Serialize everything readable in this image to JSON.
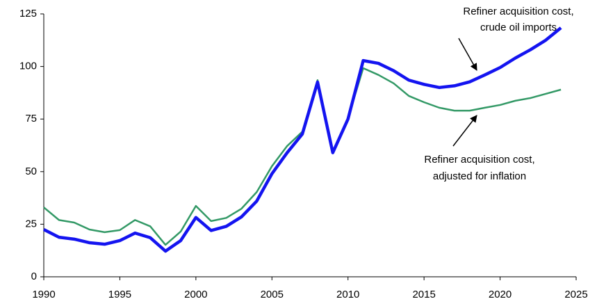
{
  "chart_data": {
    "type": "line",
    "x": [
      1990,
      1991,
      1992,
      1993,
      1994,
      1995,
      1996,
      1997,
      1998,
      1999,
      2000,
      2001,
      2002,
      2003,
      2004,
      2005,
      2006,
      2007,
      2008,
      2009,
      2010,
      2011,
      2012,
      2013,
      2014,
      2015,
      2016,
      2017,
      2018,
      2019,
      2020,
      2021,
      2022,
      2023,
      2024
    ],
    "series": [
      {
        "name": "Refiner acquisition cost, crude oil imports",
        "color": "#1414f0",
        "width": 4.5,
        "values": [
          22.5,
          18.8,
          17.9,
          16.2,
          15.5,
          17.2,
          20.8,
          18.6,
          12.2,
          17.2,
          28.2,
          22.0,
          24.0,
          28.5,
          36.0,
          49.0,
          59.0,
          67.9,
          92.6,
          59.0,
          75.0,
          102.8,
          101.5,
          98.0,
          93.5,
          91.5,
          90.0,
          90.8,
          92.7,
          96.0,
          99.5,
          104.0,
          108.0,
          112.5,
          118.4
        ]
      },
      {
        "name": "Refiner acquisition cost, adjusted for inflation",
        "color": "#339966",
        "width": 2.5,
        "values": [
          33.0,
          27.0,
          25.8,
          22.5,
          21.2,
          22.2,
          27.0,
          24.0,
          15.2,
          21.5,
          33.7,
          26.5,
          28.0,
          32.4,
          40.3,
          52.6,
          62.2,
          69.0,
          93.5,
          59.5,
          75.4,
          99.2,
          96.0,
          92.0,
          86.0,
          83.0,
          80.4,
          79.0,
          79.0,
          80.4,
          81.7,
          83.7,
          85.0,
          87.0,
          89.0
        ]
      }
    ],
    "annotations": [
      {
        "lines": [
          "Refiner acquisition cost,",
          "crude oil imports"
        ]
      },
      {
        "lines": [
          "Refiner acquisition cost,",
          "adjusted for inflation"
        ]
      }
    ],
    "xlim": [
      1990,
      2025
    ],
    "xticks": [
      1990,
      1995,
      2000,
      2005,
      2010,
      2015,
      2020,
      2025
    ],
    "ylim": [
      0,
      125
    ],
    "yticks": [
      0,
      25,
      50,
      75,
      100,
      125
    ],
    "grid": false
  }
}
